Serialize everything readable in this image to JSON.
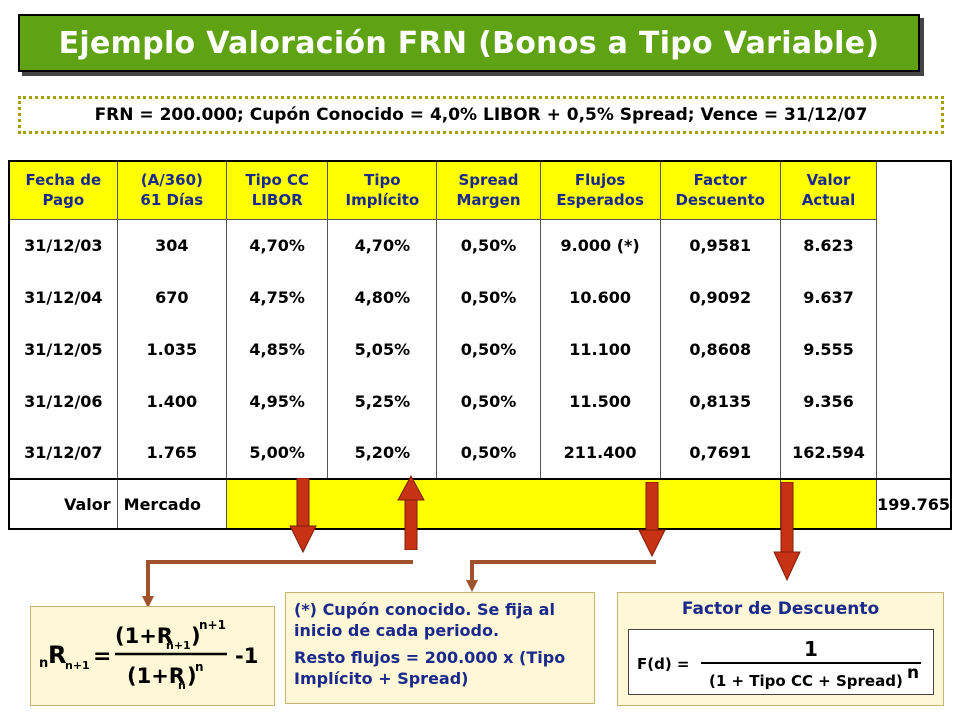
{
  "title": "Ejemplo Valoración FRN (Bonos a Tipo Variable)",
  "info": "FRN = 200.000;   Cupón Conocido = 4,0% LIBOR + 0,5% Spread;  Vence = 31/12/07",
  "table": {
    "headers": [
      {
        "l1": "Fecha de",
        "l2": "Pago"
      },
      {
        "l1": "(A/360)",
        "l2": "61 Días"
      },
      {
        "l1": "Tipo CC",
        "l2": "LIBOR"
      },
      {
        "l1": "Tipo",
        "l2": "Implícito"
      },
      {
        "l1": "Spread",
        "l2": "Margen"
      },
      {
        "l1": "Flujos",
        "l2": "Esperados"
      },
      {
        "l1": "Factor",
        "l2": "Descuento"
      },
      {
        "l1": "Valor",
        "l2": "Actual"
      }
    ],
    "rows": [
      [
        "31/12/03",
        "304",
        "4,70%",
        "4,70%",
        "0,50%",
        "9.000 (*)",
        "0,9581",
        "8.623"
      ],
      [
        "31/12/04",
        "670",
        "4,75%",
        "4,80%",
        "0,50%",
        "10.600",
        "0,9092",
        "9.637"
      ],
      [
        "31/12/05",
        "1.035",
        "4,85%",
        "5,05%",
        "0,50%",
        "11.100",
        "0,8608",
        "9.555"
      ],
      [
        "31/12/06",
        "1.400",
        "4,95%",
        "5,25%",
        "0,50%",
        "11.500",
        "0,8135",
        "9.356"
      ],
      [
        "31/12/07",
        "1.765",
        "5,00%",
        "5,20%",
        "0,50%",
        "211.400",
        "0,7691",
        "162.594"
      ]
    ],
    "total": {
      "label_a": "Valor",
      "label_b": "Mercado",
      "value": "199.765"
    }
  },
  "formula": {
    "lhs_sub": "n",
    "lhs_R": "R",
    "lhs_subsub": "n+1",
    "eq": "=",
    "num": "(1+R",
    "num_sub": "n+1",
    "num_close": ")",
    "num_exp": "n+1",
    "den": "(1+R",
    "den_sub": "n",
    "den_close": ")",
    "den_exp": "n",
    "minus": "-1"
  },
  "note": {
    "line1": "(*) Cupón conocido. Se fija al inicio de cada periodo.",
    "line2": "Resto flujos = 200.000 x (Tipo Implícito + Spread)"
  },
  "factor": {
    "title": "Factor de Descuento",
    "lhs": "F(d) =",
    "num": "1",
    "den": "(1 + Tipo CC + Spread)",
    "exp": "n"
  },
  "colors": {
    "title_bg": "#5fa315",
    "header_bg": "#ffff00",
    "header_text": "#1a2a8c",
    "arrow": "#c83214",
    "connector": "#a0522d",
    "panel_bg": "#fff7d6"
  }
}
